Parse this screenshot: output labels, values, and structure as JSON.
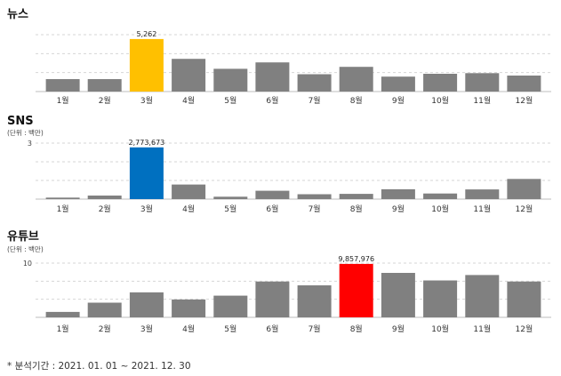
{
  "chart_data": [
    {
      "type": "bar",
      "title": "뉴스",
      "unit": "",
      "categories": [
        "1월",
        "2월",
        "3월",
        "4월",
        "5월",
        "6월",
        "7월",
        "8월",
        "9월",
        "10월",
        "11월",
        "12월"
      ],
      "values": [
        1250,
        1250,
        5262,
        3280,
        2280,
        2920,
        1740,
        2480,
        1500,
        1780,
        1840,
        1600
      ],
      "ylim": [
        0,
        5700
      ],
      "yticks": [],
      "highlight": {
        "index": 2,
        "color": "#FFC000",
        "label": "5,262"
      },
      "bar_color": "#808080"
    },
    {
      "type": "bar",
      "title": "SNS",
      "unit": "(단위 : 백만)",
      "categories": [
        "1월",
        "2월",
        "3월",
        "4월",
        "5월",
        "6월",
        "7월",
        "8월",
        "9월",
        "10월",
        "11월",
        "12월"
      ],
      "values": [
        0.08,
        0.19,
        2.773673,
        0.78,
        0.13,
        0.45,
        0.26,
        0.28,
        0.53,
        0.3,
        0.52,
        1.08
      ],
      "ylim": [
        0,
        3
      ],
      "yticks": [
        "3"
      ],
      "highlight": {
        "index": 2,
        "color": "#0070C0",
        "label": "2,773,673"
      },
      "bar_color": "#808080"
    },
    {
      "type": "bar",
      "title": "유튜브",
      "unit": "(단위 : 백만)",
      "categories": [
        "1월",
        "2월",
        "3월",
        "4월",
        "5월",
        "6월",
        "7월",
        "8월",
        "9월",
        "10월",
        "11월",
        "12월"
      ],
      "values": [
        1.0,
        2.7,
        4.6,
        3.3,
        4.0,
        6.6,
        5.9,
        9.857976,
        8.2,
        6.8,
        7.8,
        6.6
      ],
      "ylim": [
        0,
        10
      ],
      "yticks": [
        "10"
      ],
      "highlight": {
        "index": 7,
        "color": "#FF0000",
        "label": "9,857,976"
      },
      "bar_color": "#808080"
    }
  ],
  "footnote": "* 분석기간 : 2021. 01. 01 ~ 2021. 12. 30"
}
